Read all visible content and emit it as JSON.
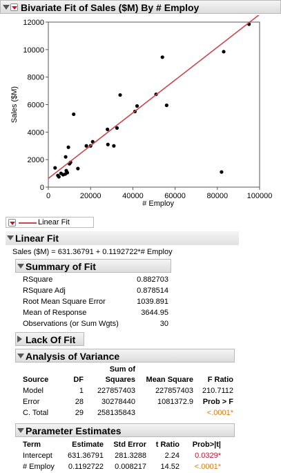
{
  "report": {
    "title": "Bivariate Fit of Sales ($M) By # Employ",
    "colors": {
      "fit_line": "#d0444c",
      "points": "#000000",
      "alert": "#e07a10",
      "alert_red": "#c8102e"
    }
  },
  "chart_data": {
    "type": "scatter",
    "xlabel": "# Employ",
    "ylabel": "Sales ($M)",
    "xlim": [
      0,
      100000
    ],
    "ylim": [
      0,
      12000
    ],
    "xticks": [
      0,
      20000,
      40000,
      60000,
      80000,
      100000
    ],
    "yticks": [
      0,
      2000,
      4000,
      6000,
      8000,
      10000,
      12000
    ],
    "grid": false,
    "points": [
      [
        3200,
        1400
      ],
      [
        4500,
        850
      ],
      [
        5000,
        750
      ],
      [
        7000,
        900
      ],
      [
        8000,
        950
      ],
      [
        8500,
        1200
      ],
      [
        9000,
        1050
      ],
      [
        8200,
        2200
      ],
      [
        9500,
        2900
      ],
      [
        10000,
        1700
      ],
      [
        10500,
        1800
      ],
      [
        12000,
        5300
      ],
      [
        14000,
        1350
      ],
      [
        18000,
        3000
      ],
      [
        20000,
        3000
      ],
      [
        21000,
        3300
      ],
      [
        28000,
        4200
      ],
      [
        28200,
        3100
      ],
      [
        31000,
        3000
      ],
      [
        32500,
        4300
      ],
      [
        34000,
        6700
      ],
      [
        41000,
        5500
      ],
      [
        42000,
        5900
      ],
      [
        51000,
        6750
      ],
      [
        54000,
        9450
      ],
      [
        56000,
        5950
      ],
      [
        82000,
        1100
      ],
      [
        83000,
        9850
      ],
      [
        95000,
        11850
      ],
      [
        6000,
        1000
      ]
    ],
    "fit": {
      "intercept": 631.36791,
      "slope": 0.1192722
    }
  },
  "legend": {
    "label": "Linear Fit"
  },
  "linear_fit": {
    "title": "Linear Fit",
    "equation": "Sales ($M) = 631.36791 + 0.1192722*# Employ"
  },
  "summary": {
    "title": "Summary of Fit",
    "rows": [
      {
        "label": "RSquare",
        "value": "0.882703"
      },
      {
        "label": "RSquare Adj",
        "value": "0.878514"
      },
      {
        "label": "Root Mean Square Error",
        "value": "1039.891"
      },
      {
        "label": "Mean of Response",
        "value": "3644.95"
      },
      {
        "label": "Observations (or Sum Wgts)",
        "value": "30"
      }
    ]
  },
  "lack_of_fit": {
    "title": "Lack Of Fit"
  },
  "anova": {
    "title": "Analysis of Variance",
    "headers": {
      "source": "Source",
      "df": "DF",
      "ss1": "Sum of",
      "ss2": "Squares",
      "ms": "Mean Square",
      "f": "F Ratio"
    },
    "rows": [
      {
        "source": "Model",
        "df": "1",
        "ss": "227857403",
        "ms": "227857403",
        "f": "210.7112"
      },
      {
        "source": "Error",
        "df": "28",
        "ss": "30278440",
        "ms": "1081372.9",
        "f": "Prob > F"
      },
      {
        "source": "C. Total",
        "df": "29",
        "ss": "258135843",
        "ms": "",
        "f": "<.0001*"
      }
    ]
  },
  "params": {
    "title": "Parameter Estimates",
    "headers": {
      "term": "Term",
      "est": "Estimate",
      "se": "Std Error",
      "t": "t Ratio",
      "p": "Prob>|t|"
    },
    "rows": [
      {
        "term": "Intercept",
        "est": "631.36791",
        "se": "281.3288",
        "t": "2.24",
        "p": "0.0329*"
      },
      {
        "term": "# Employ",
        "est": "0.1192722",
        "se": "0.008217",
        "t": "14.52",
        "p": "<.0001*"
      }
    ]
  }
}
